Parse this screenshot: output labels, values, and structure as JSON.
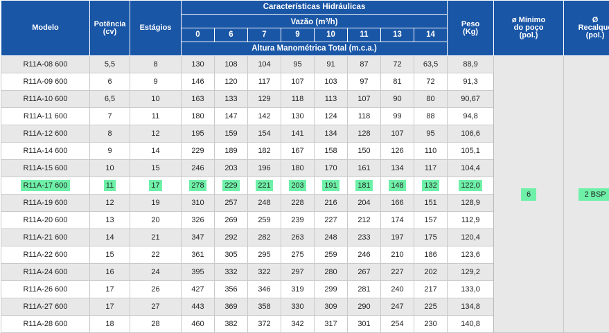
{
  "headers": {
    "modelo": "Modelo",
    "potencia_line1": "Potência",
    "potencia_line2": "(cv)",
    "estagios": "Estágios",
    "caracteristicas": "Características Hidráulicas",
    "vazao_prefix": "Vazão (m",
    "vazao_sup": "3",
    "vazao_suffix": "/h)",
    "altura": "Altura Manométrica Total (m.c.a.)",
    "peso_line1": "Peso",
    "peso_line2": "(Kg)",
    "minimo_line1": "ø Mínimo",
    "minimo_line2": "do poço",
    "minimo_line3": "(pol.)",
    "recalque_line1": "Ø",
    "recalque_line2": "Recalque",
    "recalque_line3": "(pol.)"
  },
  "flow_columns": [
    "0",
    "6",
    "7",
    "9",
    "10",
    "11",
    "13",
    "14"
  ],
  "rows": [
    {
      "modelo": "R11A-08 600",
      "potencia": "5,5",
      "estagios": "8",
      "alturas": [
        "130",
        "108",
        "104",
        "95",
        "91",
        "87",
        "72",
        "63,5"
      ],
      "peso": "88,9",
      "highlighted": false
    },
    {
      "modelo": "R11A-09 600",
      "potencia": "6",
      "estagios": "9",
      "alturas": [
        "146",
        "120",
        "117",
        "107",
        "103",
        "97",
        "81",
        "72"
      ],
      "peso": "91,3",
      "highlighted": false
    },
    {
      "modelo": "R11A-10 600",
      "potencia": "6,5",
      "estagios": "10",
      "alturas": [
        "163",
        "133",
        "129",
        "118",
        "113",
        "107",
        "90",
        "80"
      ],
      "peso": "90,67",
      "highlighted": false
    },
    {
      "modelo": "R11A-11 600",
      "potencia": "7",
      "estagios": "11",
      "alturas": [
        "180",
        "147",
        "142",
        "130",
        "124",
        "118",
        "99",
        "88"
      ],
      "peso": "94,8",
      "highlighted": false
    },
    {
      "modelo": "R11A-12 600",
      "potencia": "8",
      "estagios": "12",
      "alturas": [
        "195",
        "159",
        "154",
        "141",
        "134",
        "128",
        "107",
        "95"
      ],
      "peso": "106,6",
      "highlighted": false
    },
    {
      "modelo": "R11A-14 600",
      "potencia": "9",
      "estagios": "14",
      "alturas": [
        "229",
        "189",
        "182",
        "167",
        "158",
        "150",
        "126",
        "110"
      ],
      "peso": "105,1",
      "highlighted": false
    },
    {
      "modelo": "R11A-15 600",
      "potencia": "10",
      "estagios": "15",
      "alturas": [
        "246",
        "203",
        "196",
        "180",
        "170",
        "161",
        "134",
        "117"
      ],
      "peso": "104,4",
      "highlighted": false
    },
    {
      "modelo": "R11A-17 600",
      "potencia": "11",
      "estagios": "17",
      "alturas": [
        "278",
        "229",
        "221",
        "203",
        "191",
        "181",
        "148",
        "132"
      ],
      "peso": "122,0",
      "highlighted": true
    },
    {
      "modelo": "R11A-19 600",
      "potencia": "12",
      "estagios": "19",
      "alturas": [
        "310",
        "257",
        "248",
        "228",
        "216",
        "204",
        "166",
        "151"
      ],
      "peso": "128,9",
      "highlighted": false
    },
    {
      "modelo": "R11A-20 600",
      "potencia": "13",
      "estagios": "20",
      "alturas": [
        "326",
        "269",
        "259",
        "239",
        "227",
        "212",
        "174",
        "157"
      ],
      "peso": "112,9",
      "highlighted": false
    },
    {
      "modelo": "R11A-21 600",
      "potencia": "14",
      "estagios": "21",
      "alturas": [
        "347",
        "292",
        "282",
        "263",
        "248",
        "233",
        "197",
        "175"
      ],
      "peso": "120,4",
      "highlighted": false
    },
    {
      "modelo": "R11A-22 600",
      "potencia": "15",
      "estagios": "22",
      "alturas": [
        "361",
        "305",
        "295",
        "275",
        "259",
        "246",
        "210",
        "186"
      ],
      "peso": "123,6",
      "highlighted": false
    },
    {
      "modelo": "R11A-24 600",
      "potencia": "16",
      "estagios": "24",
      "alturas": [
        "395",
        "332",
        "322",
        "297",
        "280",
        "267",
        "227",
        "202"
      ],
      "peso": "129,2",
      "highlighted": false
    },
    {
      "modelo": "R11A-26 600",
      "potencia": "17",
      "estagios": "26",
      "alturas": [
        "427",
        "356",
        "346",
        "319",
        "299",
        "281",
        "240",
        "217"
      ],
      "peso": "133,0",
      "highlighted": false
    },
    {
      "modelo": "R11A-27 600",
      "potencia": "17",
      "estagios": "27",
      "alturas": [
        "443",
        "369",
        "358",
        "330",
        "309",
        "290",
        "247",
        "225"
      ],
      "peso": "134,8",
      "highlighted": false
    },
    {
      "modelo": "R11A-28 600",
      "potencia": "18",
      "estagios": "28",
      "alturas": [
        "460",
        "382",
        "372",
        "342",
        "317",
        "301",
        "254",
        "230"
      ],
      "peso": "140,8",
      "highlighted": false
    }
  ],
  "merged": {
    "minimo_poco": "6",
    "recalque": "2  BSP",
    "highlight_color": "#6ef0a8"
  },
  "colors": {
    "header_bg": "#1a56a6",
    "row_alt_bg": "#e8e8e8"
  }
}
